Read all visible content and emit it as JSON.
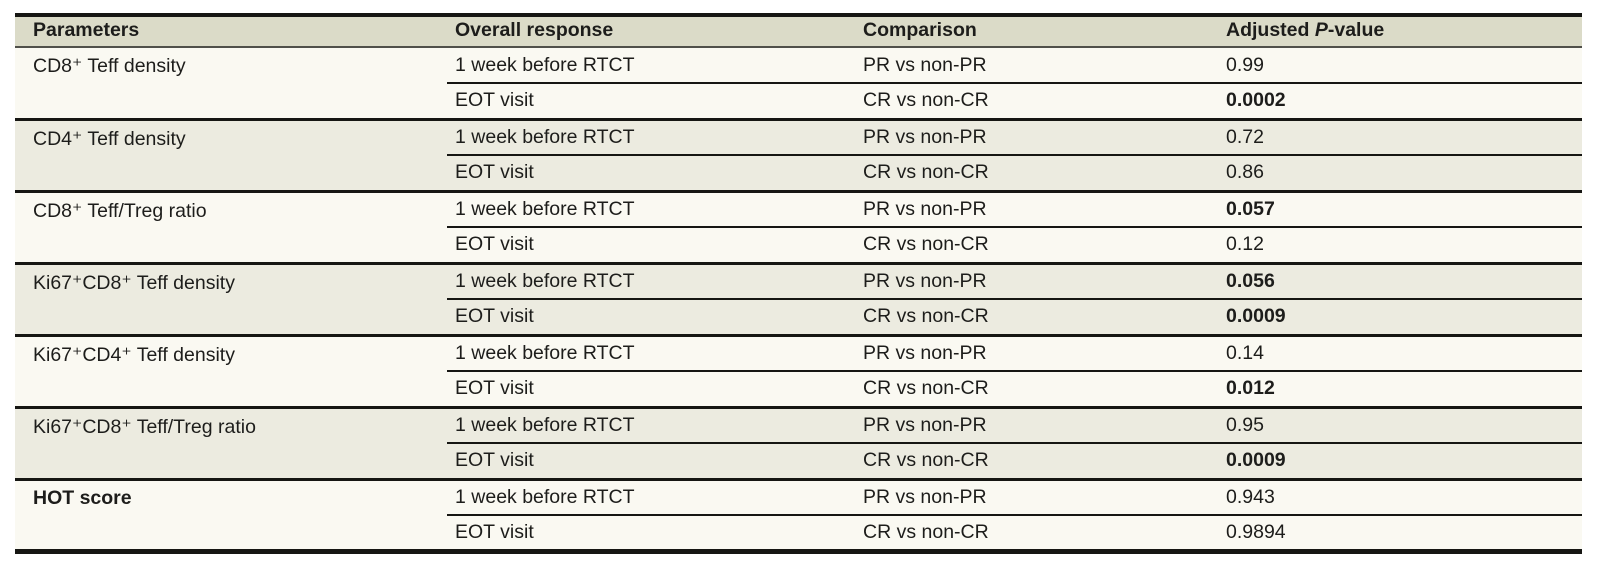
{
  "colors": {
    "header_bg": "#dbdbc8",
    "group_light_bg": "#faf9f2",
    "group_shaded_bg": "#ecebe0",
    "rule": "#161613",
    "text": "#1d1d1b"
  },
  "table": {
    "headers": {
      "parameters": "Parameters",
      "overall_response": "Overall response",
      "comparison": "Comparison",
      "pvalue_prefix": "Adjusted ",
      "pvalue_italic": "P",
      "pvalue_suffix": "-value"
    },
    "groups": [
      {
        "param": "CD8⁺ Teff density",
        "param_bold": false,
        "rows": [
          {
            "response": "1 week before RTCT",
            "comparison": "PR vs non-PR",
            "p": "0.99",
            "p_bold": false
          },
          {
            "response": "EOT visit",
            "comparison": "CR vs non-CR",
            "p": "0.0002",
            "p_bold": true
          }
        ]
      },
      {
        "param": "CD4⁺ Teff density",
        "param_bold": false,
        "rows": [
          {
            "response": "1 week before RTCT",
            "comparison": "PR vs non-PR",
            "p": "0.72",
            "p_bold": false
          },
          {
            "response": "EOT visit",
            "comparison": "CR vs non-CR",
            "p": "0.86",
            "p_bold": false
          }
        ]
      },
      {
        "param": "CD8⁺ Teff/Treg ratio",
        "param_bold": false,
        "rows": [
          {
            "response": "1 week before RTCT",
            "comparison": "PR vs non-PR",
            "p": "0.057",
            "p_bold": true
          },
          {
            "response": "EOT visit",
            "comparison": "CR vs non-CR",
            "p": "0.12",
            "p_bold": false
          }
        ]
      },
      {
        "param": "Ki67⁺CD8⁺ Teff density",
        "param_bold": false,
        "rows": [
          {
            "response": "1 week before RTCT",
            "comparison": "PR vs non-PR",
            "p": "0.056",
            "p_bold": true
          },
          {
            "response": "EOT visit",
            "comparison": "CR vs non-CR",
            "p": "0.0009",
            "p_bold": true
          }
        ]
      },
      {
        "param": "Ki67⁺CD4⁺ Teff density",
        "param_bold": false,
        "rows": [
          {
            "response": "1 week before RTCT",
            "comparison": "PR vs non-PR",
            "p": "0.14",
            "p_bold": false
          },
          {
            "response": "EOT visit",
            "comparison": "CR vs non-CR",
            "p": "0.012",
            "p_bold": true
          }
        ]
      },
      {
        "param": "Ki67⁺CD8⁺ Teff/Treg ratio",
        "param_bold": false,
        "rows": [
          {
            "response": "1 week before RTCT",
            "comparison": "PR vs non-PR",
            "p": "0.95",
            "p_bold": false
          },
          {
            "response": "EOT visit",
            "comparison": "CR vs non-CR",
            "p": "0.0009",
            "p_bold": true
          }
        ]
      },
      {
        "param": "HOT score",
        "param_bold": true,
        "rows": [
          {
            "response": "1 week before RTCT",
            "comparison": "PR vs non-PR",
            "p": "0.943",
            "p_bold": false
          },
          {
            "response": "EOT visit",
            "comparison": "CR vs non-CR",
            "p": "0.9894",
            "p_bold": false
          }
        ]
      }
    ]
  }
}
